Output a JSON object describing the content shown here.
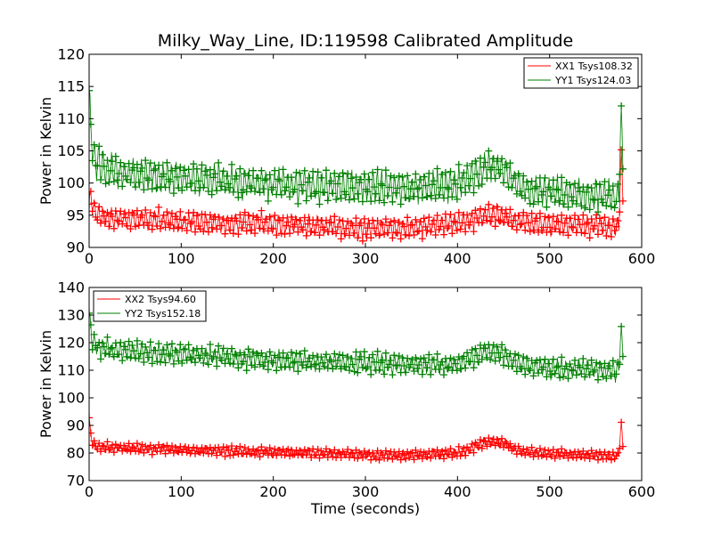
{
  "figure": {
    "title": "Milky_Way_Line, ID:119598 Calibrated Amplitude",
    "xlabel": "Time (seconds)"
  },
  "colors": {
    "red": "#ff0000",
    "green": "#008000"
  },
  "chart_data": [
    {
      "type": "line",
      "ylabel": "Power in Kelvin",
      "xlim": [
        0,
        600
      ],
      "ylim": [
        90,
        120
      ],
      "xticks": [
        0,
        100,
        200,
        300,
        400,
        500,
        600
      ],
      "yticks": [
        90,
        95,
        100,
        105,
        110,
        115,
        120
      ],
      "legend_position": "top-right",
      "series": [
        {
          "name": "XX1 Tsys108.32",
          "color": "#ff0000",
          "x": [
            0,
            2,
            5,
            10,
            20,
            40,
            60,
            80,
            100,
            120,
            140,
            160,
            180,
            200,
            220,
            240,
            260,
            280,
            300,
            320,
            340,
            360,
            380,
            400,
            410,
            420,
            430,
            440,
            450,
            460,
            470,
            480,
            500,
            520,
            540,
            560,
            575,
            578,
            580
          ],
          "y": [
            97,
            98,
            96,
            95,
            94.5,
            94.5,
            94.3,
            94.2,
            94,
            94,
            93.8,
            93.8,
            93.7,
            93.6,
            93.5,
            93.3,
            93.2,
            93,
            92.8,
            93,
            93,
            93.2,
            93.5,
            93.8,
            94.2,
            94.6,
            95,
            95,
            94.8,
            94.3,
            94,
            93.8,
            93.6,
            93.5,
            93.4,
            93.3,
            93.2,
            106,
            95
          ],
          "amplitude": 1.6
        },
        {
          "name": "YY1 Tsys124.03",
          "color": "#008000",
          "x": [
            0,
            2,
            5,
            10,
            20,
            40,
            60,
            80,
            100,
            120,
            140,
            160,
            180,
            200,
            220,
            240,
            260,
            280,
            300,
            320,
            340,
            360,
            380,
            400,
            410,
            420,
            430,
            440,
            450,
            460,
            470,
            480,
            500,
            520,
            540,
            560,
            575,
            578,
            580
          ],
          "y": [
            114,
            108,
            104,
            103,
            102,
            101.6,
            101.2,
            101,
            100.8,
            100.6,
            100.4,
            100.2,
            100,
            99.8,
            99.7,
            99.6,
            99.5,
            99.4,
            99.4,
            99.4,
            99.4,
            99.4,
            99.5,
            99.8,
            100.5,
            101.5,
            102.5,
            102.6,
            102,
            100.5,
            99.5,
            99,
            98.6,
            98.4,
            98.2,
            98,
            97.8,
            113,
            99.5
          ],
          "amplitude": 2.4
        }
      ]
    },
    {
      "type": "line",
      "ylabel": "Power in Kelvin",
      "xlabel": "Time (seconds)",
      "xlim": [
        0,
        600
      ],
      "ylim": [
        70,
        140
      ],
      "xticks": [
        0,
        100,
        200,
        300,
        400,
        500,
        600
      ],
      "yticks": [
        70,
        80,
        90,
        100,
        110,
        120,
        130,
        140
      ],
      "legend_position": "top-left",
      "series": [
        {
          "name": "XX2 Tsys94.60",
          "color": "#ff0000",
          "x": [
            0,
            2,
            5,
            10,
            20,
            40,
            60,
            80,
            100,
            120,
            140,
            160,
            180,
            200,
            220,
            240,
            260,
            280,
            300,
            320,
            340,
            360,
            380,
            400,
            410,
            420,
            430,
            440,
            450,
            460,
            470,
            480,
            500,
            520,
            540,
            560,
            575,
            578,
            580
          ],
          "y": [
            93,
            86,
            83,
            82,
            82,
            81.8,
            81.6,
            81.4,
            81.2,
            81,
            80.8,
            80.6,
            80.4,
            80.3,
            80.2,
            80,
            79.8,
            79.6,
            79.4,
            79.3,
            79.3,
            79.4,
            79.6,
            80,
            81,
            82.5,
            84,
            84.2,
            83.5,
            82,
            80.8,
            80.2,
            79.8,
            79.5,
            79.3,
            79.2,
            79,
            92,
            80
          ],
          "amplitude": 1.7
        },
        {
          "name": "YY2 Tsys152.18",
          "color": "#008000",
          "x": [
            0,
            2,
            5,
            10,
            20,
            40,
            60,
            80,
            100,
            120,
            140,
            160,
            180,
            200,
            220,
            240,
            260,
            280,
            300,
            320,
            340,
            360,
            380,
            400,
            410,
            420,
            430,
            440,
            450,
            460,
            470,
            480,
            500,
            520,
            540,
            560,
            575,
            578,
            580
          ],
          "y": [
            130,
            123,
            120,
            118,
            117.5,
            117,
            116.6,
            116.2,
            115.8,
            115.4,
            115,
            114.6,
            114.2,
            113.8,
            113.5,
            113.2,
            113,
            112.8,
            112.6,
            112.4,
            112.2,
            112,
            112,
            112.3,
            113.5,
            115,
            116.5,
            116.5,
            115.5,
            113.5,
            112,
            111.2,
            110.8,
            110.5,
            110.2,
            110,
            109.8,
            127,
            112
          ],
          "amplitude": 3.5
        }
      ]
    }
  ]
}
